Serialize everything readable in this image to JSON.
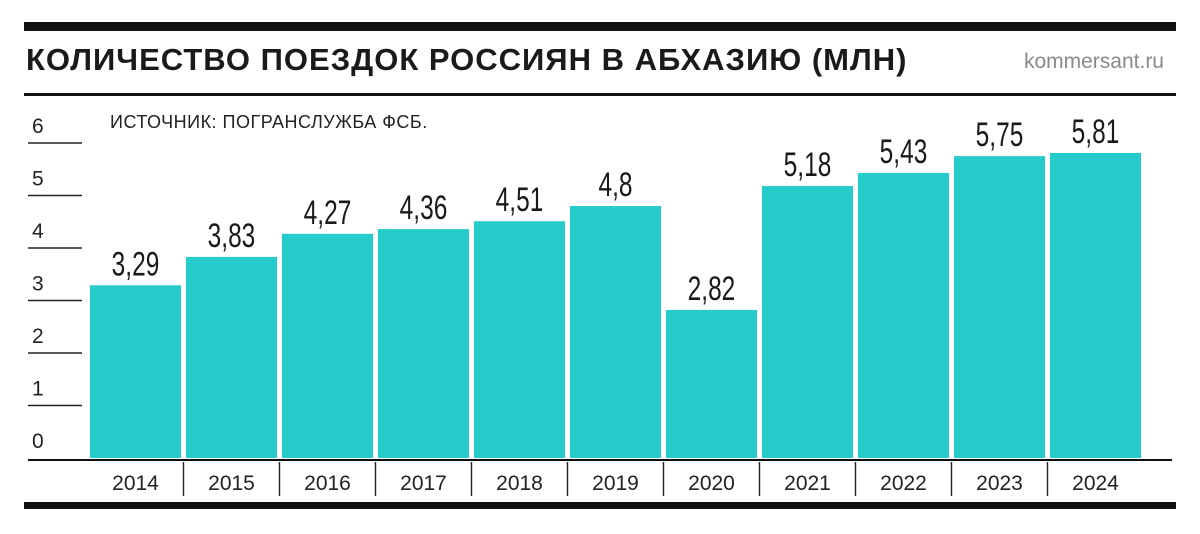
{
  "header": {
    "title": "КОЛИЧЕСТВО ПОЕЗДОК РОССИЯН В АБХАЗИЮ (МЛН)",
    "brand": "kommersant.ru",
    "source": "ИСТОЧНИК: ПОГРАНСЛУЖБА ФСБ."
  },
  "colors": {
    "bar": "#26CBCB",
    "rules": "#111111",
    "brand": "#8A8A8A"
  },
  "chart_data": {
    "type": "bar",
    "title": "КОЛИЧЕСТВО ПОЕЗДОК РОССИЯН В АБХАЗИЮ (МЛН)",
    "xlabel": "",
    "ylabel": "",
    "categories": [
      "2014",
      "2015",
      "2016",
      "2017",
      "2018",
      "2019",
      "2020",
      "2021",
      "2022",
      "2023",
      "2024"
    ],
    "values": [
      3.29,
      3.83,
      4.27,
      4.36,
      4.51,
      4.8,
      2.82,
      5.18,
      5.43,
      5.75,
      5.81
    ],
    "value_labels": [
      "3,29",
      "3,83",
      "4,27",
      "4,36",
      "4,51",
      "4,8",
      "2,82",
      "5,18",
      "5,43",
      "5,75",
      "5,81"
    ],
    "yticks": [
      "0",
      "1",
      "2",
      "3",
      "4",
      "5",
      "6"
    ],
    "ylim": [
      0,
      6
    ],
    "grid": false,
    "legend": "none"
  }
}
